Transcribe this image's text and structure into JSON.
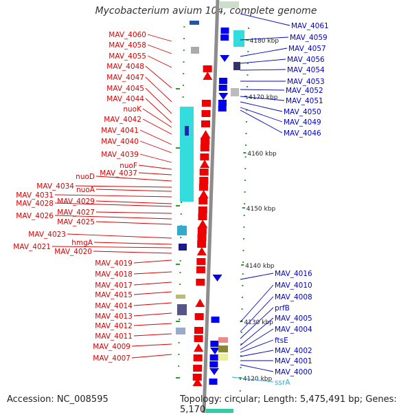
{
  "title": "Mycobacterium avium 104, complete genome",
  "accession": "Accession: NC_008595",
  "topology": "Topology: circular; Length: 5,475,491 bp; Genes: 5,170",
  "colors": {
    "left_label": "#dd0000",
    "right_label": "#0000cc",
    "rna_label": "#33aadd",
    "backbone": "#8c8c8c",
    "forward_gene": "#ee0000",
    "reverse_gene": "#0000ee",
    "tick": "#2a9a2a"
  },
  "scale_labels": [
    {
      "text": "4180 kbp"
    },
    {
      "text": "4170 kbp"
    },
    {
      "text": "4160 kbp"
    },
    {
      "text": "4150 kbp"
    },
    {
      "text": "4140 kbp"
    },
    {
      "text": "4130 kbp"
    },
    {
      "text": "4120 kbp"
    }
  ],
  "left_genes": [
    "MAV_4060",
    "MAV_4058",
    "MAV_4055",
    "MAV_4048",
    "MAV_4047",
    "MAV_4045",
    "MAV_4044",
    "nuoK",
    "MAV_4042",
    "MAV_4041",
    "MAV_4040",
    "MAV_4039",
    "nuoF",
    "MAV_4037",
    "nuoD",
    "MAV_4034",
    "nuoA",
    "MAV_4031",
    "MAV_4029",
    "MAV_4028",
    "MAV_4027",
    "MAV_4026",
    "MAV_4025",
    "MAV_4023",
    "hmgA",
    "MAV_4021",
    "MAV_4020",
    "MAV_4019",
    "MAV_4018",
    "MAV_4017",
    "MAV_4015",
    "MAV_4014",
    "MAV_4013",
    "MAV_4012",
    "MAV_4011",
    "MAV_4009",
    "MAV_4007"
  ],
  "right_genes": [
    "MAV_4061",
    "MAV_4059",
    "MAV_4057",
    "MAV_4056",
    "MAV_4054",
    "MAV_4053",
    "MAV_4052",
    "MAV_4051",
    "MAV_4050",
    "MAV_4049",
    "MAV_4046",
    "MAV_4016",
    "MAV_4010",
    "MAV_4008",
    "prfB",
    "MAV_4005",
    "MAV_4004",
    "ftsE",
    "MAV_4002",
    "MAV_4001",
    "MAV_4000"
  ],
  "rna_genes": [
    "ssrA"
  ]
}
